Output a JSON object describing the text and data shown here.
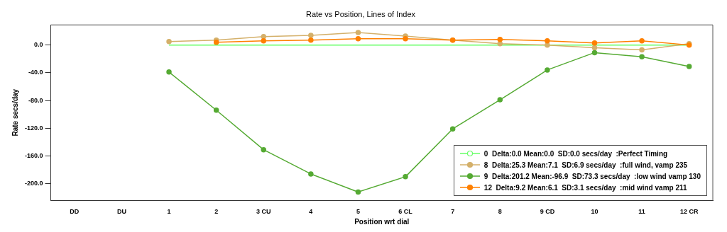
{
  "chart_data": {
    "type": "line",
    "title": "Rate vs Position, Lines of Index",
    "xlabel": "Position wrt dial",
    "ylabel": "Rate secs/day",
    "categories": [
      "DD",
      "DU",
      "1",
      "2",
      "3 CU",
      "4",
      "5",
      "6 CL",
      "7",
      "8",
      "9 CD",
      "10",
      "11",
      "12 CR"
    ],
    "series": [
      {
        "name": "0  Delta:0.0 Mean:0.0  SD:0.0 secs/day  :Perfect Timing",
        "color": "#66ff66",
        "marker": "none",
        "values": [
          null,
          null,
          0,
          0,
          0,
          0,
          0,
          0,
          0,
          0,
          0,
          0,
          0,
          0
        ]
      },
      {
        "name": "8  Delta:25.3 Mean:7.1  SD:6.9 secs/day  :full wind, vamp 235",
        "color": "#d4b06a",
        "values": [
          null,
          null,
          5,
          7,
          12,
          14,
          18,
          13,
          7,
          2,
          0,
          -4,
          -7,
          2
        ]
      },
      {
        "name": "9  Delta:201.2 Mean:-96.9  SD:73.3 secs/day  :low wind vamp 130",
        "color": "#55aa33",
        "values": [
          null,
          null,
          -39,
          -94,
          -151,
          -186,
          -212,
          -190,
          -121,
          -79,
          -36,
          -11,
          -17,
          -31
        ]
      },
      {
        "name": "12  Delta:9.2 Mean:6.1  SD:3.1 secs/day  :mid wind vamp 211",
        "color": "#ff8000",
        "values": [
          null,
          null,
          null,
          4,
          6,
          7,
          9,
          9,
          7,
          8,
          6,
          3,
          6,
          0
        ]
      }
    ],
    "ylim": [
      -224,
      29
    ],
    "yticks": [
      {
        "value": 0,
        "label": "0.0"
      },
      {
        "value": -40,
        "label": "-40.0"
      },
      {
        "value": -80,
        "label": "-80.0"
      },
      {
        "value": -120,
        "label": "-120.0"
      },
      {
        "value": -160,
        "label": "-160.0"
      },
      {
        "value": -200,
        "label": "-200.0"
      }
    ],
    "grid": false,
    "legend": "bottom right",
    "marker": "circle",
    "line_style": "solid"
  }
}
